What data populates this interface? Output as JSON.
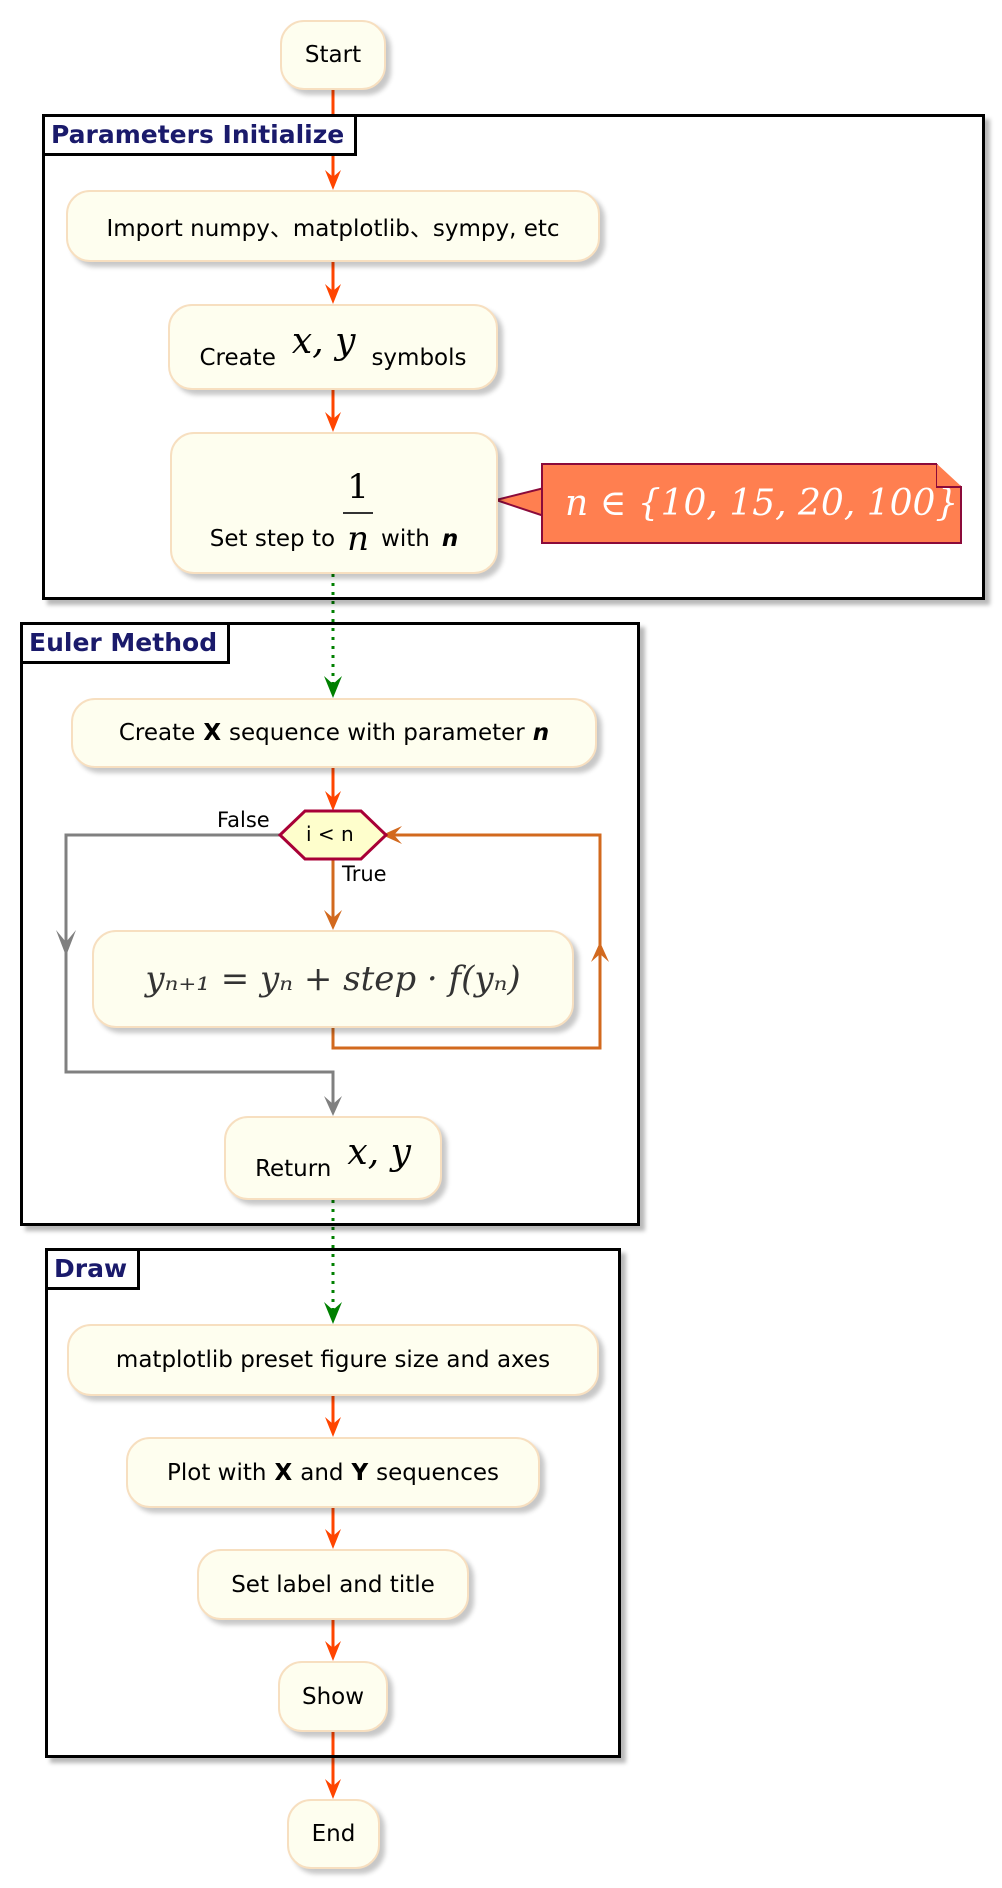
{
  "start": "Start",
  "end": "End",
  "groups": {
    "params": "Parameters Initialize",
    "euler": "Euler Method",
    "draw": "Draw"
  },
  "nodes": {
    "import": "Import numpy、matplotlib、sympy, etc",
    "create_prefix": "Create",
    "create_math": "x, y",
    "create_suffix": "symbols",
    "step_prefix": "Set step to",
    "step_num": "1",
    "step_den": "n",
    "step_with": "with",
    "step_n": "n",
    "x_seq_a": "Create",
    "x_seq_b": "X",
    "x_seq_c": "sequence with parameter",
    "x_seq_d": "n",
    "update": "yₙ₊₁ = yₙ + step · f(yₙ)",
    "return_prefix": "Return",
    "return_math": "x, y",
    "mpl": "matplotlib preset figure size and axes",
    "plot_a": "Plot with",
    "plot_b": "X",
    "plot_c": "and",
    "plot_d": "Y",
    "plot_e": "sequences",
    "label": "Set label and title",
    "show": "Show"
  },
  "decision": {
    "text": "i < n",
    "true_label": "True",
    "false_label": "False"
  },
  "note": "n ∈ {10, 15, 20, 100}",
  "colors": {
    "flow": "#ff4500",
    "group_link": "#008000",
    "loop": "#d2691e",
    "false_path": "#808080",
    "node_fill": "#fefeef",
    "node_border": "#f7dfc0",
    "note_fill": "#ff7f50",
    "title": "#1a1a6b"
  }
}
